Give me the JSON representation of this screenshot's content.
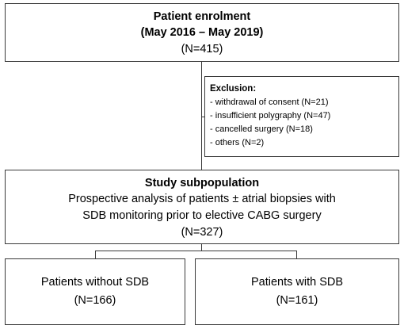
{
  "enrolment": {
    "title": "Patient enrolment",
    "period": "(May 2016 – May 2019)",
    "count": "(N=415)"
  },
  "exclusion": {
    "heading": "Exclusion:",
    "items": [
      "- withdrawal of consent (N=21)",
      "- insufficient polygraphy (N=47)",
      "- cancelled surgery (N=18)",
      "- others (N=2)"
    ]
  },
  "study": {
    "title": "Study  subpopulation",
    "line1": "Prospective analysis of patients ± atrial biopsies with",
    "line2": "SDB monitoring prior to elective CABG surgery",
    "count": "(N=327)"
  },
  "groups": [
    {
      "label": "Patients without SDB",
      "count": "(N=166)"
    },
    {
      "label": "Patients with SDB",
      "count": "(N=161)"
    }
  ],
  "colors": {
    "border": "#3a3a3a",
    "text": "#000000",
    "background": "#ffffff"
  }
}
